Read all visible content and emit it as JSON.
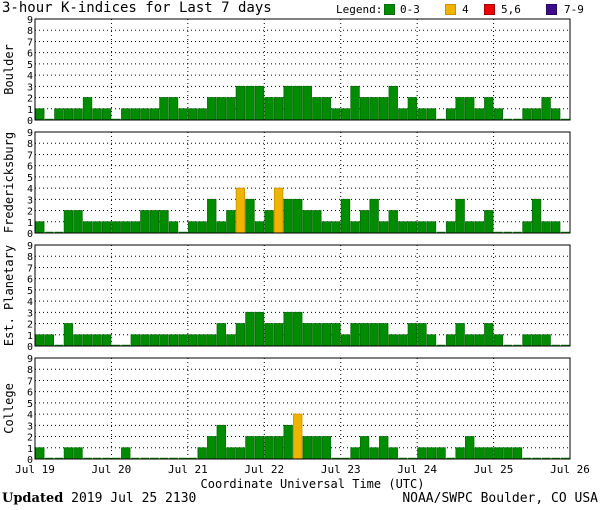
{
  "title": "3-hour K-indices for Last 7 days",
  "legend": {
    "label": "Legend:",
    "items": [
      {
        "text": "0-3",
        "color": "#008c00",
        "edge": "#0a6b0a"
      },
      {
        "text": "4",
        "color": "#f0b400",
        "edge": "#c89300"
      },
      {
        "text": "5,6",
        "color": "#ee0000",
        "edge": "#a00000"
      },
      {
        "text": "7-9",
        "color": "#3c0a8c",
        "edge": "#2a0666"
      }
    ]
  },
  "footer": {
    "updated_label": "Updated",
    "updated_value": "2019 Jul 25 2130",
    "source": "NOAA/SWPC Boulder, CO USA"
  },
  "chart_data": {
    "type": "bar",
    "xlabel": "Coordinate Universal Time (UTC)",
    "x_ticks": [
      "Jul 19",
      "Jul 20",
      "Jul 21",
      "Jul 22",
      "Jul 23",
      "Jul 24",
      "Jul 25",
      "Jul 26"
    ],
    "ylim": [
      0,
      9
    ],
    "yticks": [
      0,
      1,
      2,
      3,
      4,
      5,
      6,
      7,
      8,
      9
    ],
    "bins_per_day": 8,
    "days": 7,
    "panels": [
      {
        "name": "Boulder",
        "values": [
          1,
          0,
          1,
          1,
          1,
          2,
          1,
          1,
          0,
          1,
          1,
          1,
          1,
          2,
          2,
          1,
          1,
          1,
          2,
          2,
          2,
          3,
          3,
          3,
          2,
          2,
          3,
          3,
          3,
          2,
          2,
          1,
          1,
          3,
          2,
          2,
          2,
          3,
          1,
          2,
          1,
          1,
          0,
          1,
          2,
          2,
          1,
          2,
          1,
          0,
          0,
          1,
          1,
          2,
          1,
          0
        ]
      },
      {
        "name": "Fredericksburg",
        "values": [
          1,
          0,
          0,
          2,
          2,
          1,
          1,
          1,
          1,
          1,
          1,
          2,
          2,
          2,
          1,
          0,
          1,
          1,
          3,
          1,
          2,
          4,
          3,
          1,
          2,
          4,
          3,
          3,
          2,
          2,
          1,
          1,
          3,
          1,
          2,
          3,
          1,
          2,
          1,
          1,
          1,
          1,
          0,
          1,
          3,
          1,
          1,
          2,
          0,
          0,
          0,
          1,
          3,
          1,
          1,
          0
        ]
      },
      {
        "name": "Est. Planetary",
        "values": [
          1,
          1,
          0,
          2,
          1,
          1,
          1,
          1,
          0,
          0,
          1,
          1,
          1,
          1,
          1,
          1,
          1,
          1,
          1,
          2,
          1,
          2,
          3,
          3,
          2,
          2,
          3,
          3,
          2,
          2,
          2,
          2,
          1,
          2,
          2,
          2,
          2,
          1,
          1,
          2,
          2,
          1,
          0,
          1,
          2,
          1,
          1,
          2,
          1,
          0,
          0,
          1,
          1,
          1,
          0,
          0
        ]
      },
      {
        "name": "College",
        "values": [
          1,
          0,
          0,
          1,
          1,
          0,
          0,
          0,
          0,
          1,
          0,
          0,
          0,
          0,
          0,
          0,
          0,
          1,
          2,
          3,
          1,
          1,
          2,
          2,
          2,
          2,
          3,
          4,
          2,
          2,
          2,
          0,
          0,
          1,
          2,
          1,
          2,
          1,
          0,
          0,
          1,
          1,
          1,
          0,
          1,
          2,
          1,
          1,
          1,
          1,
          1,
          0,
          0,
          0,
          0,
          0
        ]
      }
    ],
    "colors": {
      "0-3": "#008c00",
      "4": "#f0b400",
      "5,6": "#ee0000",
      "7-9": "#3c0a8c"
    }
  }
}
